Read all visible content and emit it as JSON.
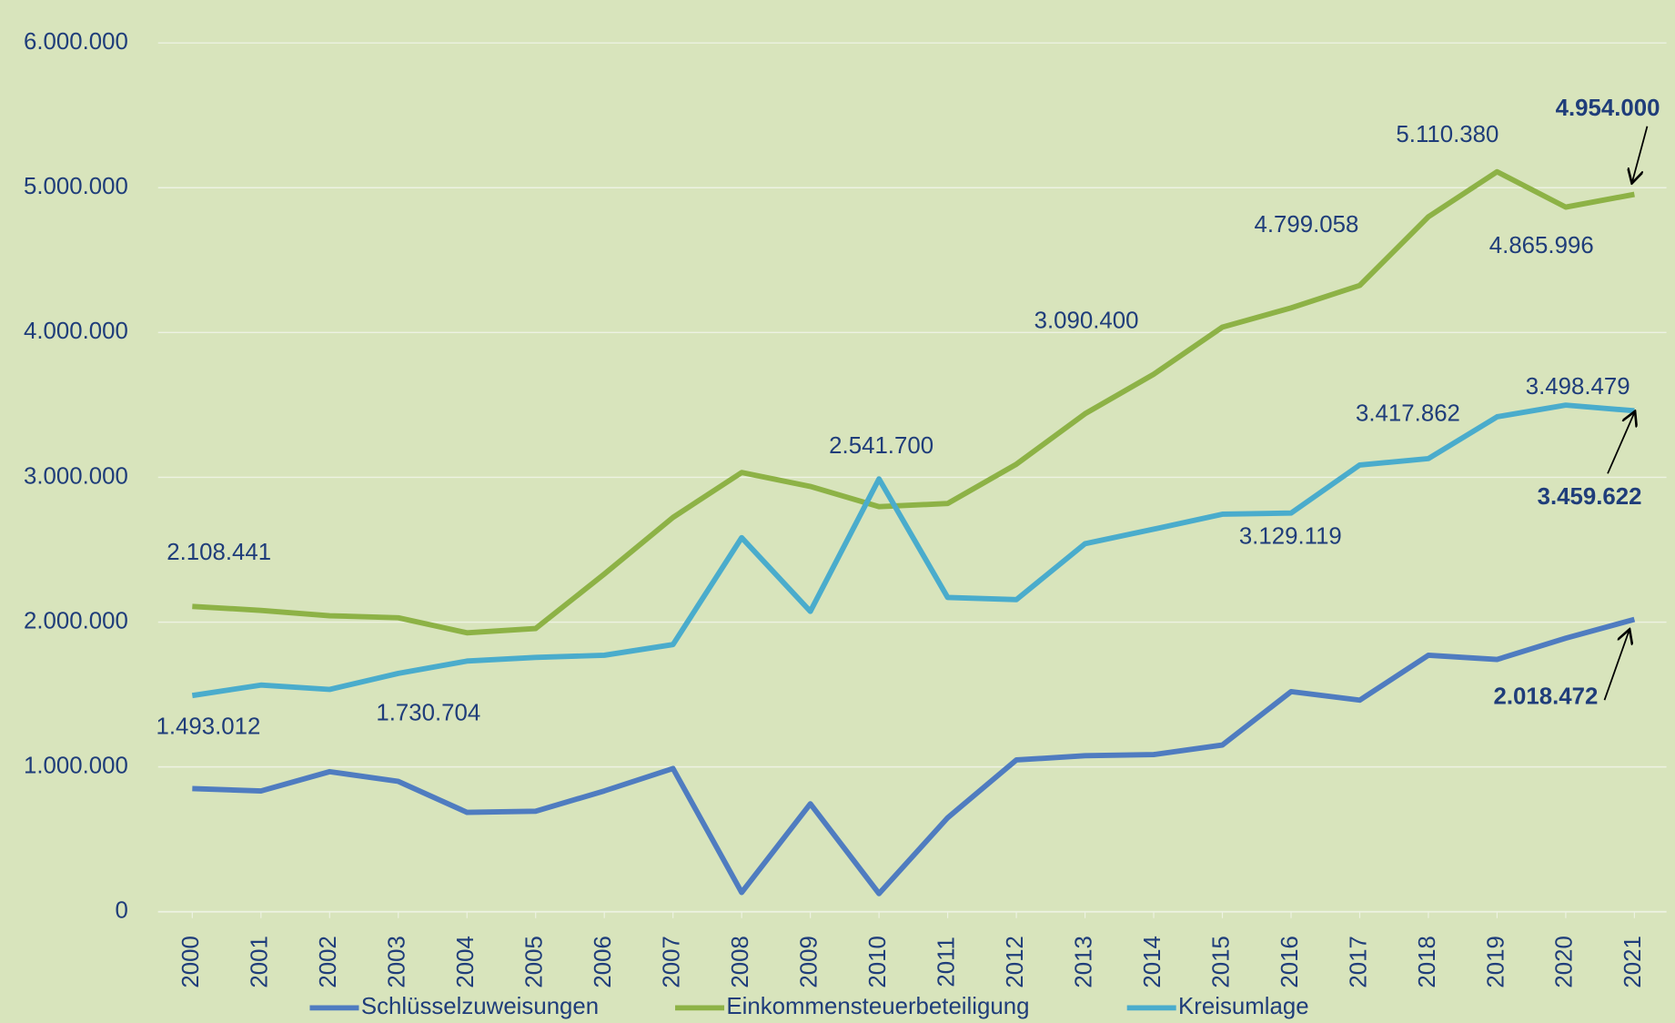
{
  "chart_data": {
    "type": "line",
    "categories": [
      "2000",
      "2001",
      "2002",
      "2003",
      "2004",
      "2005",
      "2006",
      "2007",
      "2008",
      "2009",
      "2010",
      "2011",
      "2012",
      "2013",
      "2014",
      "2015",
      "2016",
      "2017",
      "2018",
      "2019",
      "2020",
      "2021"
    ],
    "series": [
      {
        "name": "Schlüsselzuweisungen",
        "color": "#4f7cc0",
        "values": [
          850000,
          834000,
          967000,
          900000,
          686000,
          694000,
          834000,
          989000,
          133000,
          745000,
          125000,
          649000,
          1048000,
          1077000,
          1085000,
          1151000,
          1520000,
          1461000,
          1771000,
          1742000,
          1889000,
          2018472
        ],
        "value_labels": [
          null,
          null,
          null,
          null,
          null,
          null,
          null,
          null,
          null,
          null,
          null,
          null,
          null,
          null,
          null,
          null,
          null,
          null,
          null,
          null,
          null,
          "2.018.472"
        ]
      },
      {
        "name": "Einkommensteuerbeteiligung",
        "color": "#8db246",
        "values": [
          2108441,
          2081000,
          2044000,
          2030000,
          1926000,
          1956000,
          2332000,
          2723000,
          3033000,
          2937000,
          2797000,
          2819000,
          3090400,
          3439000,
          3712000,
          4037000,
          4170000,
          4325000,
          4799058,
          5110380,
          4865996,
          4954000
        ],
        "value_labels": [
          "2.108.441",
          null,
          null,
          null,
          null,
          null,
          null,
          null,
          null,
          null,
          null,
          null,
          "3.090.400",
          null,
          null,
          null,
          null,
          null,
          "4.799.058",
          "5.110.380",
          "4.865.996",
          "4.954.000"
        ]
      },
      {
        "name": "Kreisumlage",
        "color": "#4aaccc",
        "values": [
          1493012,
          1565000,
          1535000,
          1646000,
          1730704,
          1756000,
          1771000,
          1845000,
          2583000,
          2074000,
          2989000,
          2170000,
          2155000,
          2541700,
          2642000,
          2745000,
          2753000,
          3085000,
          3129119,
          3417862,
          3498479,
          3459622
        ],
        "value_labels": [
          "1.493.012",
          null,
          null,
          null,
          "1.730.704",
          null,
          null,
          null,
          null,
          null,
          null,
          null,
          null,
          "2.541.700",
          null,
          null,
          null,
          null,
          "3.129.119",
          "3.417.862",
          "3.498.479",
          "3.459.622"
        ]
      }
    ],
    "ylim": [
      0,
      6000000
    ],
    "yticks": [
      0,
      {
        "value": 1000000,
        "label": "1.000.000"
      },
      {
        "value": 2000000,
        "label": "2.000.000"
      },
      {
        "value": 3000000,
        "label": "3.000.000"
      },
      {
        "value": 4000000,
        "label": "4.000.000"
      },
      {
        "value": 5000000,
        "label": "5.000.000"
      },
      {
        "value": 6000000,
        "label": "6.000.000"
      }
    ],
    "grid": true,
    "legend": "bottom"
  }
}
